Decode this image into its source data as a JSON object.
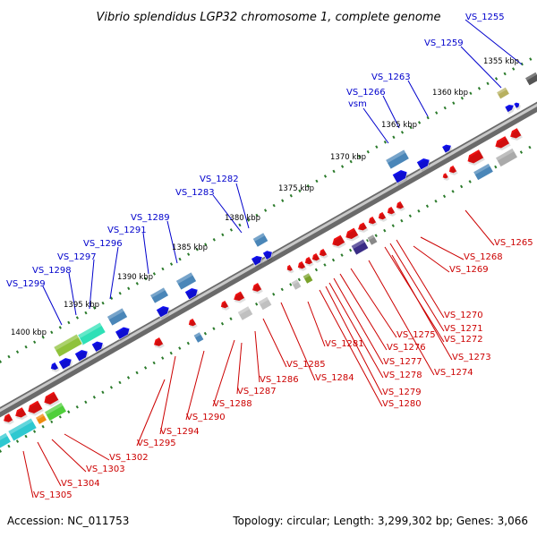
{
  "title": "Vibrio splendidus LGP32 chromosome 1, complete genome",
  "footer": {
    "accession": "Accession: NC_011753",
    "summary": "Topology: circular; Length: 3,299,302 bp; Genes: 3,066"
  },
  "colors": {
    "forward_label": "#0000cc",
    "reverse_label": "#cc0000",
    "forward_gene": "#1010ee",
    "reverse_gene": "#ee1111",
    "scale_tick": "#2a7a2a",
    "backbone": "#777777"
  },
  "scale_ticks": [
    "1355 kbp",
    "1360 kbp",
    "1365 kbp",
    "1370 kbp",
    "1375 kbp",
    "1380 kbp",
    "1385 kbp",
    "1390 kbp",
    "1395 kbp",
    "1400 kbp"
  ],
  "forward_labels": [
    "VS_1255",
    "VS_1259",
    "VS_1263",
    "VS_1266",
    "vsm",
    "VS_1282",
    "VS_1283",
    "VS_1289",
    "VS_1291",
    "VS_1296",
    "VS_1297",
    "VS_1298",
    "VS_1299"
  ],
  "reverse_labels": [
    "VS_1265",
    "VS_1268",
    "VS_1269",
    "VS_1270",
    "VS_1271",
    "VS_1272",
    "VS_1273",
    "VS_1274",
    "VS_1275",
    "VS_1276",
    "VS_1277",
    "VS_1278",
    "VS_1279",
    "VS_1280",
    "VS_1281",
    "VS_1284",
    "VS_1285",
    "VS_1286",
    "VS_1287",
    "VS_1288",
    "VS_1290",
    "VS_1294",
    "VS_1295",
    "VS_1302",
    "VS_1303",
    "VS_1304",
    "VS_1305"
  ]
}
